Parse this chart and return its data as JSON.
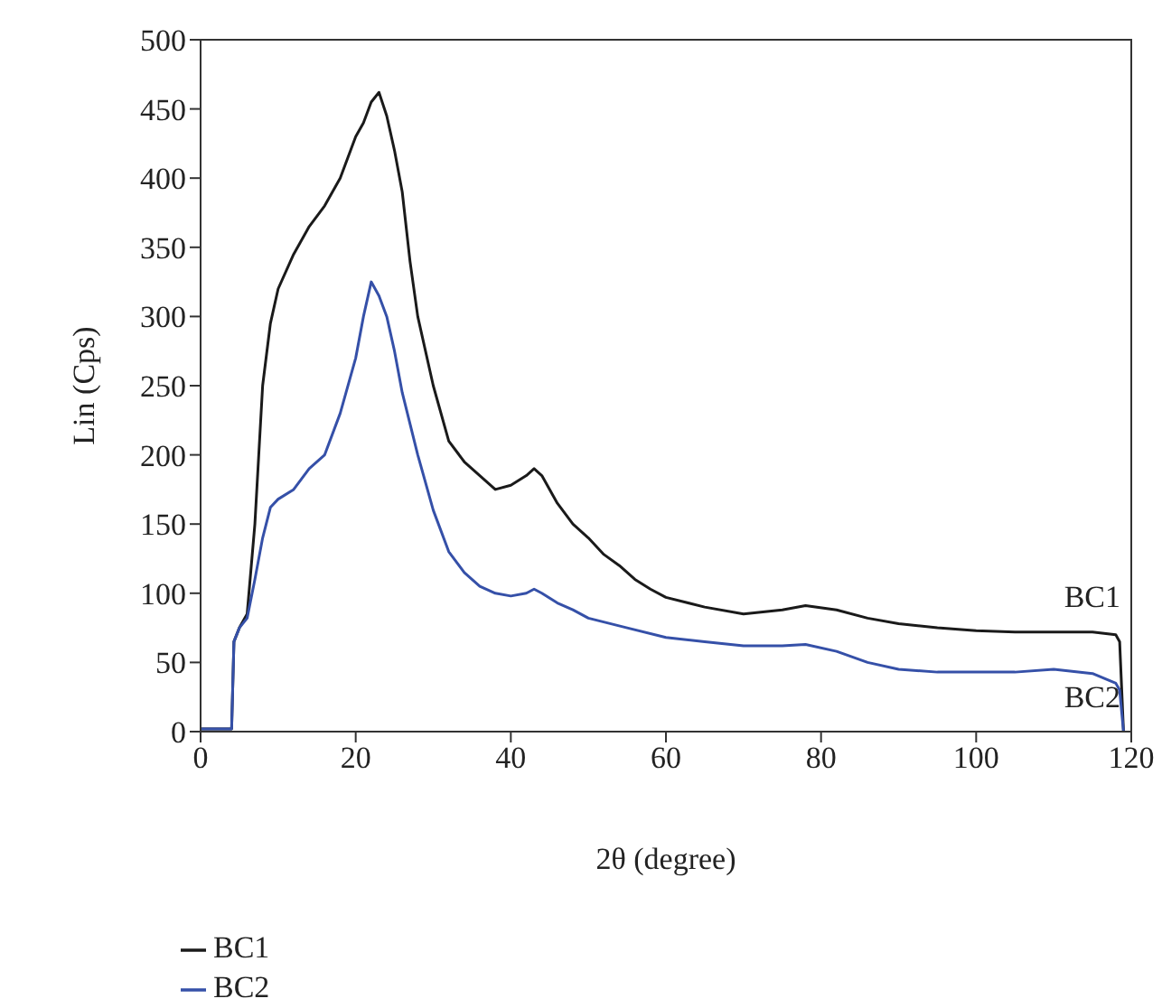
{
  "chart_data": {
    "type": "line",
    "xlabel": "2θ (degree)",
    "ylabel": "Lin (Cps)",
    "xlim": [
      0,
      120
    ],
    "xticks": [
      0,
      20,
      40,
      60,
      80,
      100,
      120
    ],
    "ylim": [
      0,
      500
    ],
    "yticks": [
      0,
      50,
      100,
      150,
      200,
      250,
      300,
      350,
      400,
      450,
      500
    ],
    "grid": false,
    "legend": "bottom left",
    "marker": "none",
    "line_style": "solid",
    "series": [
      {
        "name": "BC1",
        "color": "#1a1a1a",
        "x": [
          0,
          2,
          4,
          4.3,
          5,
          6,
          7,
          8,
          9,
          10,
          12,
          14,
          16,
          18,
          20,
          21,
          22,
          23,
          24,
          25,
          26,
          27,
          28,
          30,
          32,
          34,
          36,
          38,
          40,
          42,
          43,
          44,
          46,
          48,
          50,
          52,
          54,
          56,
          58,
          60,
          65,
          70,
          75,
          78,
          82,
          86,
          90,
          95,
          100,
          105,
          110,
          115,
          118,
          118.5,
          119
        ],
        "values": [
          2,
          2,
          2,
          65,
          75,
          85,
          150,
          250,
          295,
          320,
          345,
          365,
          380,
          400,
          430,
          440,
          455,
          462,
          445,
          420,
          390,
          340,
          300,
          250,
          210,
          195,
          185,
          175,
          178,
          185,
          190,
          185,
          165,
          150,
          140,
          128,
          120,
          110,
          103,
          97,
          90,
          85,
          88,
          91,
          88,
          82,
          78,
          75,
          73,
          72,
          72,
          72,
          70,
          65,
          0
        ]
      },
      {
        "name": "BC2",
        "color": "#3550a8",
        "x": [
          0,
          2,
          4,
          4.3,
          5,
          6,
          7,
          8,
          9,
          10,
          12,
          14,
          16,
          18,
          20,
          21,
          22,
          23,
          24,
          25,
          26,
          28,
          30,
          32,
          34,
          36,
          38,
          40,
          42,
          43,
          44,
          46,
          48,
          50,
          55,
          60,
          65,
          70,
          75,
          78,
          82,
          86,
          90,
          95,
          100,
          105,
          110,
          115,
          118,
          118.5,
          119
        ],
        "values": [
          2,
          2,
          2,
          65,
          75,
          82,
          110,
          140,
          162,
          168,
          175,
          190,
          200,
          230,
          270,
          300,
          325,
          315,
          300,
          275,
          245,
          200,
          160,
          130,
          115,
          105,
          100,
          98,
          100,
          103,
          100,
          93,
          88,
          82,
          75,
          68,
          65,
          62,
          62,
          63,
          58,
          50,
          45,
          43,
          43,
          43,
          45,
          42,
          35,
          30,
          0
        ]
      }
    ],
    "annotations": [
      "BC1",
      "BC2"
    ]
  }
}
